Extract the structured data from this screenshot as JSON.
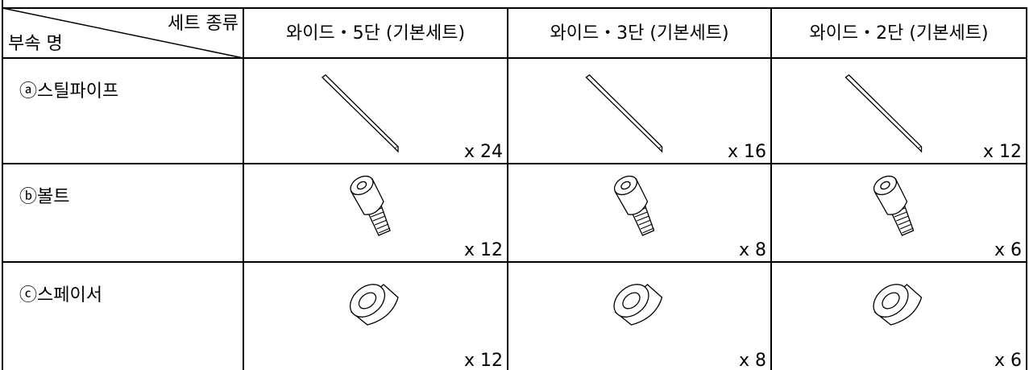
{
  "header": {
    "corner_top": "세트 종류",
    "corner_bottom": "부속 명",
    "columns": [
      "와이드・5단 (기본세트)",
      "와이드・3단 (기본세트)",
      "와이드・2단 (기본세트)"
    ]
  },
  "table": {
    "rows": [
      {
        "part": "ⓐ스틸파이프",
        "quantities": [
          "x 24",
          "x 16",
          "x 12"
        ]
      },
      {
        "part": "ⓑ볼트",
        "quantities": [
          "x 12",
          "x 8",
          "x 6"
        ]
      },
      {
        "part": "ⓒ스페이서",
        "quantities": [
          "x 12",
          "x 8",
          "x 6"
        ]
      }
    ]
  }
}
